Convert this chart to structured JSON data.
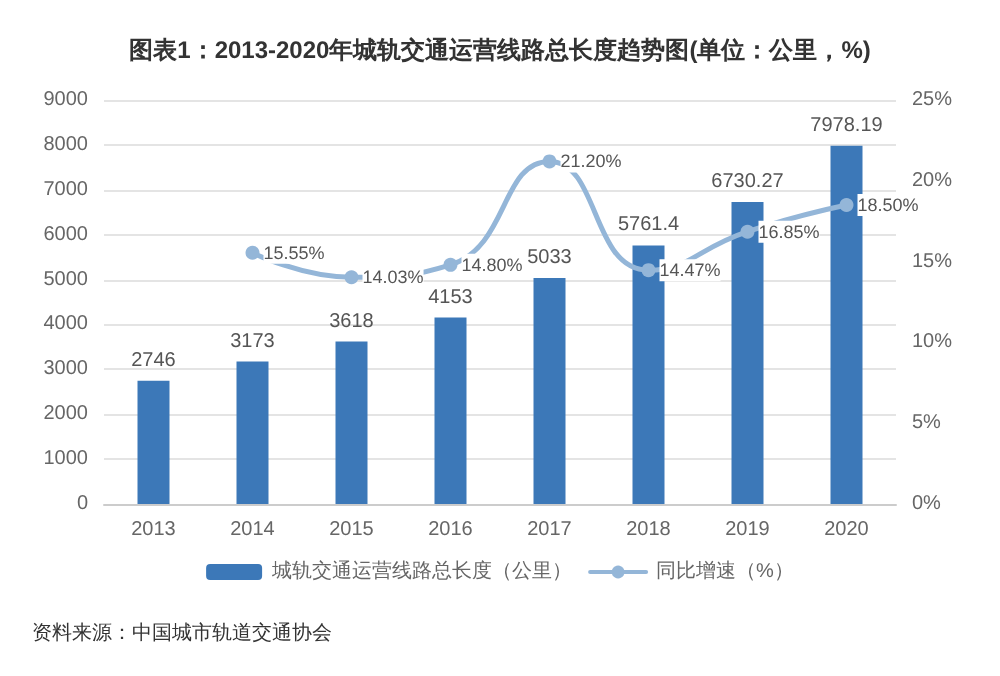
{
  "chart_data": {
    "type": "bar",
    "title": "图表1：2013-2020年城轨交通运营线路总长度趋势图(单位：公里，%)",
    "categories": [
      "2013",
      "2014",
      "2015",
      "2016",
      "2017",
      "2018",
      "2019",
      "2020"
    ],
    "series": [
      {
        "name": "城轨交通运营线路总长度（公里）",
        "color": "#3c78b8",
        "values": [
          2746,
          3173,
          3618,
          4153,
          5033,
          5761.4,
          6730.27,
          7978.19
        ],
        "value_labels": [
          "2746",
          "3173",
          "3618",
          "4153",
          "5033",
          "5761.4",
          "6730.27",
          "7978.19"
        ]
      },
      {
        "name": "同比增速（%）",
        "type": "line",
        "axis": "y2",
        "color": "#94b6d8",
        "values": [
          null,
          15.55,
          14.03,
          14.8,
          21.2,
          14.47,
          16.85,
          18.5
        ],
        "value_labels": [
          null,
          "15.55%",
          "14.03%",
          "14.80%",
          "21.20%",
          "14.47%",
          "16.85%",
          "18.50%"
        ]
      }
    ],
    "ylim": [
      0,
      9000
    ],
    "yticks": [
      0,
      1000,
      2000,
      3000,
      4000,
      5000,
      6000,
      7000,
      8000,
      9000
    ],
    "y2lim": [
      0,
      25
    ],
    "y2ticks": [
      {
        "value": 0,
        "label": "0%"
      },
      {
        "value": 5,
        "label": "5%"
      },
      {
        "value": 10,
        "label": "10%"
      },
      {
        "value": 15,
        "label": "15%"
      },
      {
        "value": 20,
        "label": "20%"
      },
      {
        "value": 25,
        "label": "25%"
      }
    ],
    "grid": "y",
    "legend": "bottom",
    "marker": "circle",
    "line_style": "solid",
    "annotations": [
      "资料来源：中国城市轨道交通协会"
    ]
  }
}
